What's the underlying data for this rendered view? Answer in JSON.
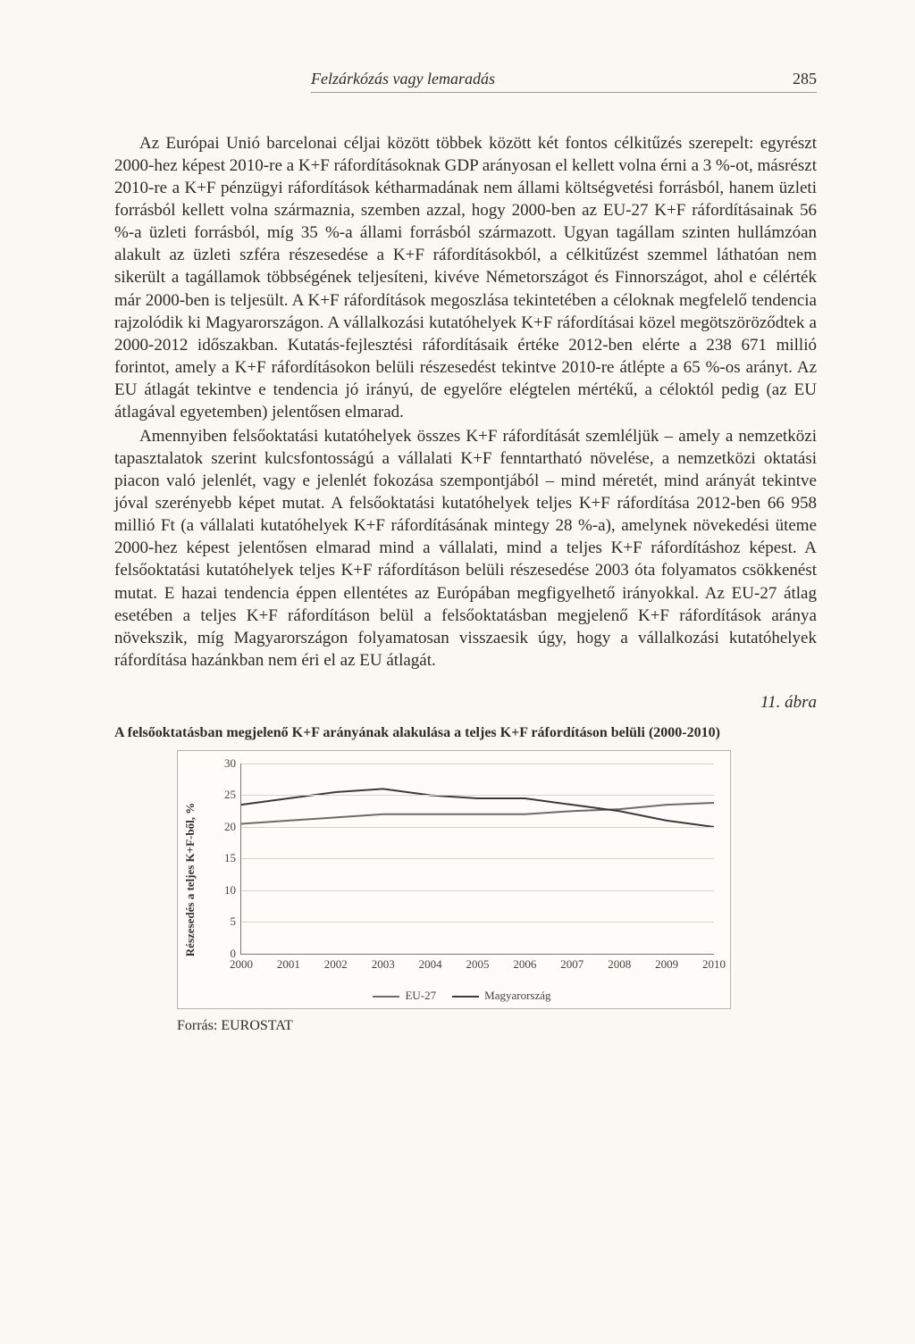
{
  "header": {
    "running_title": "Felzárkózás vagy lemaradás",
    "page_number": "285"
  },
  "paragraphs": {
    "p1": "Az Európai Unió barcelonai céljai között többek között két fontos célkitűzés szerepelt: egyrészt 2000-hez képest 2010-re a K+F ráfordításoknak GDP arányosan el kellett volna érni a 3 %-ot, másrészt 2010-re a K+F pénzügyi ráfordítások kétharmadának nem állami költségvetési forrásból, hanem üzleti forrásból kellett volna származnia, szemben azzal, hogy 2000-ben az EU-27 K+F ráfordításainak 56 %-a üzleti forrásból, míg 35 %-a állami forrásból származott. Ugyan tagállam szinten hullámzóan alakult az üzleti szféra részesedése a K+F ráfordításokból, a célkitűzést szemmel láthatóan nem sikerült a tagállamok többségének teljesíteni, kivéve Németországot és Finnországot, ahol e célérték már 2000-ben is teljesült. A K+F ráfordítások megoszlása tekintetében a céloknak megfelelő tendencia rajzolódik ki Magyarországon. A vállalkozási kutatóhelyek K+F ráfordításai közel megötszöröződtek a 2000-2012 időszakban. Kutatás-fejlesztési ráfordításaik értéke 2012-ben elérte a 238 671 millió forintot, amely a K+F ráfordításokon belüli részesedést tekintve 2010-re átlépte a 65 %-os arányt. Az EU átlagát tekintve e tendencia jó irányú, de egyelőre elégtelen mértékű, a céloktól pedig (az EU átlagával egyetemben) jelentősen elmarad.",
    "p2": "Amennyiben felsőoktatási kutatóhelyek összes K+F ráfordítását szemléljük – amely a nemzetközi tapasztalatok szerint kulcsfontosságú a vállalati K+F fenntartható növelése, a nemzetközi oktatási piacon való jelenlét, vagy e jelenlét fokozása szempontjából – mind méretét, mind arányát tekintve jóval szerényebb képet mutat. A felsőoktatási kutatóhelyek teljes K+F ráfordítása 2012-ben 66 958 millió Ft (a vállalati kutatóhelyek K+F ráfordításának mintegy 28 %-a), amelynek növekedési üteme 2000-hez képest jelentősen elmarad mind a vállalati, mind a teljes K+F ráfordításhoz képest. A felsőoktatási kutatóhelyek teljes K+F ráfordításon belüli részesedése 2003 óta folyamatos csökkenést mutat. E hazai tendencia éppen ellentétes az Európában megfigyelhető irányokkal. Az EU-27 átlag esetében a teljes K+F ráfordításon belül a felsőoktatásban megjelenő K+F ráfordítások aránya növekszik, míg Magyarországon folyamatosan visszaesik úgy, hogy a vállalkozási kutatóhelyek ráfordítása hazánkban nem éri el az EU átlagát."
  },
  "figure": {
    "label": "11. ábra",
    "title": "A felsőoktatásban megjelenő K+F arányának alakulása a teljes K+F ráfordításon belüli (2000-2010)",
    "source": "Forrás: EUROSTAT"
  },
  "chart": {
    "type": "line",
    "y_axis_title": "Részesedés a teljes K+F-ből, %",
    "categories": [
      "2000",
      "2001",
      "2002",
      "2003",
      "2004",
      "2005",
      "2006",
      "2007",
      "2008",
      "2009",
      "2010"
    ],
    "ylim": [
      0,
      30
    ],
    "ytick_step": 5,
    "yticks": [
      "0",
      "5",
      "10",
      "15",
      "20",
      "25",
      "30"
    ],
    "series": [
      {
        "name": "EU-27",
        "color": "#6b6b6b",
        "width": 2,
        "values": [
          20.5,
          21.0,
          21.5,
          22.0,
          22.0,
          22.0,
          22.0,
          22.5,
          22.8,
          23.5,
          23.8
        ]
      },
      {
        "name": "Magyarország",
        "color": "#3a3a3a",
        "width": 2,
        "values": [
          23.5,
          24.5,
          25.5,
          26.0,
          25.0,
          24.5,
          24.5,
          23.5,
          22.5,
          21.0,
          20.0
        ]
      }
    ],
    "grid_color": "#d7d4cc",
    "axis_color": "#777777",
    "background_color": "#fdfcf8",
    "legend_position": "bottom"
  }
}
